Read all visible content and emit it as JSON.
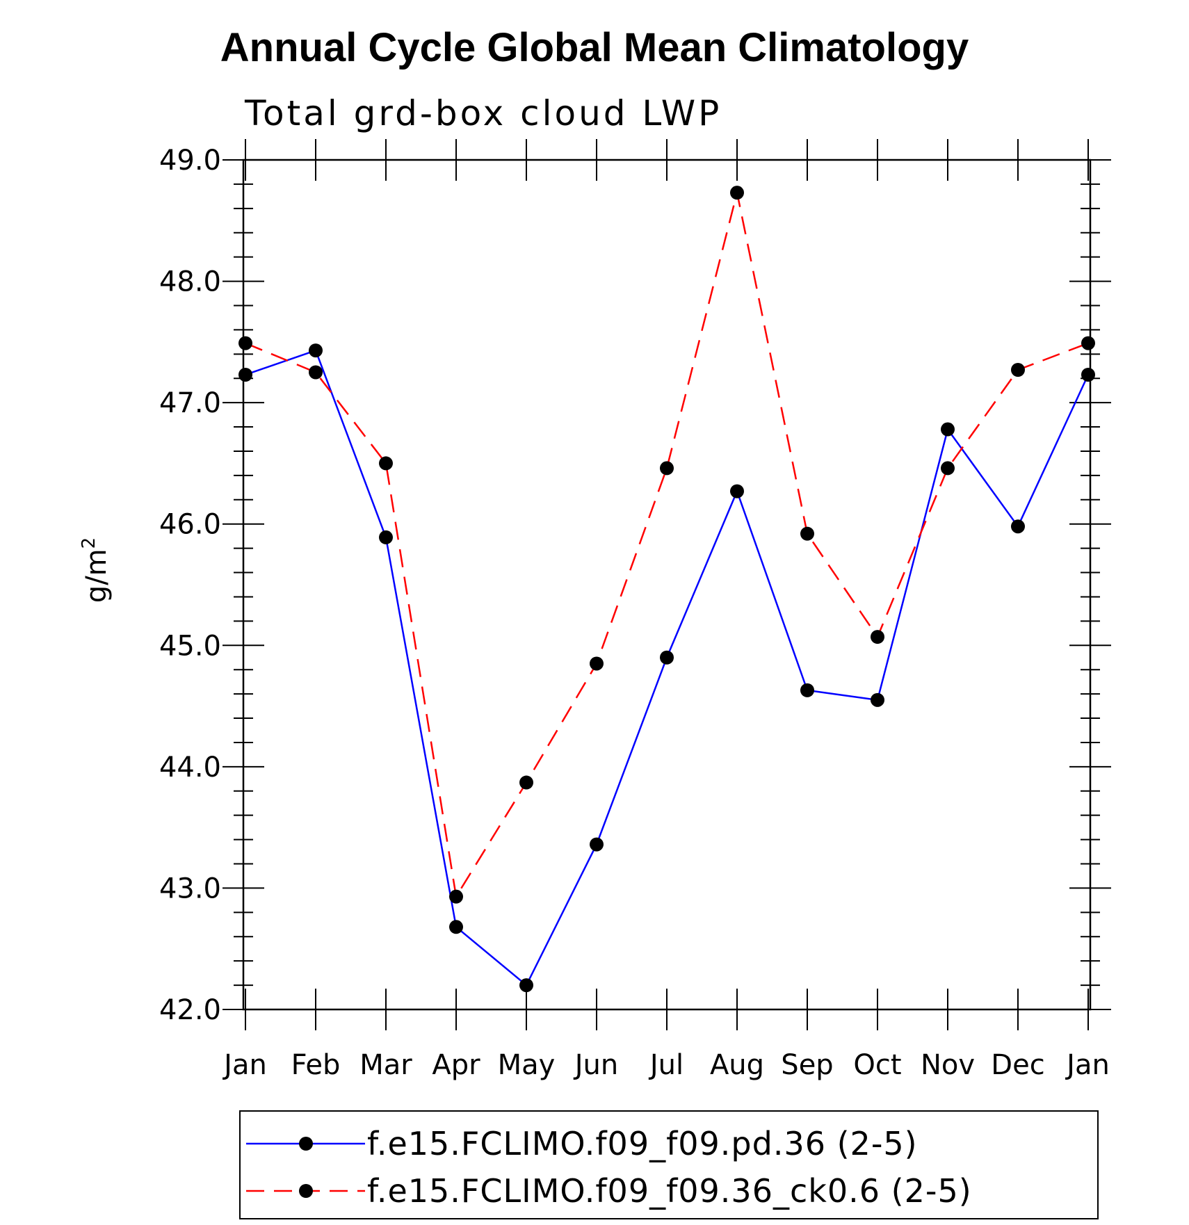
{
  "chart_data": {
    "type": "line",
    "title": "Annual Cycle Global Mean Climatology",
    "subtitle": "Total grd-box cloud LWP",
    "ylabel": "g/m",
    "ylabel_superscript": "2",
    "xlabel": "",
    "categories": [
      "Jan",
      "Feb",
      "Mar",
      "Apr",
      "May",
      "Jun",
      "Jul",
      "Aug",
      "Sep",
      "Oct",
      "Nov",
      "Dec",
      "Jan"
    ],
    "ylim": [
      42.0,
      49.0
    ],
    "yticks": [
      "42.0",
      "43.0",
      "44.0",
      "45.0",
      "46.0",
      "47.0",
      "48.0",
      "49.0"
    ],
    "series": [
      {
        "name": "f.e15.FCLIMO.f09_f09.pd.36 (2-5)",
        "color": "#0000ff",
        "dash": "solid",
        "values": [
          47.23,
          47.43,
          45.89,
          42.68,
          42.2,
          43.36,
          44.9,
          46.27,
          44.63,
          44.55,
          46.78,
          45.98,
          47.23
        ]
      },
      {
        "name": "f.e15.FCLIMO.f09_f09.36_ck0.6 (2-5)",
        "color": "#ff0000",
        "dash": "dashed",
        "values": [
          47.49,
          47.25,
          46.5,
          42.93,
          43.87,
          44.85,
          46.46,
          48.73,
          45.92,
          45.07,
          46.46,
          47.27,
          47.49
        ]
      }
    ],
    "marker_color": "#000000",
    "legend_position": "bottom"
  }
}
